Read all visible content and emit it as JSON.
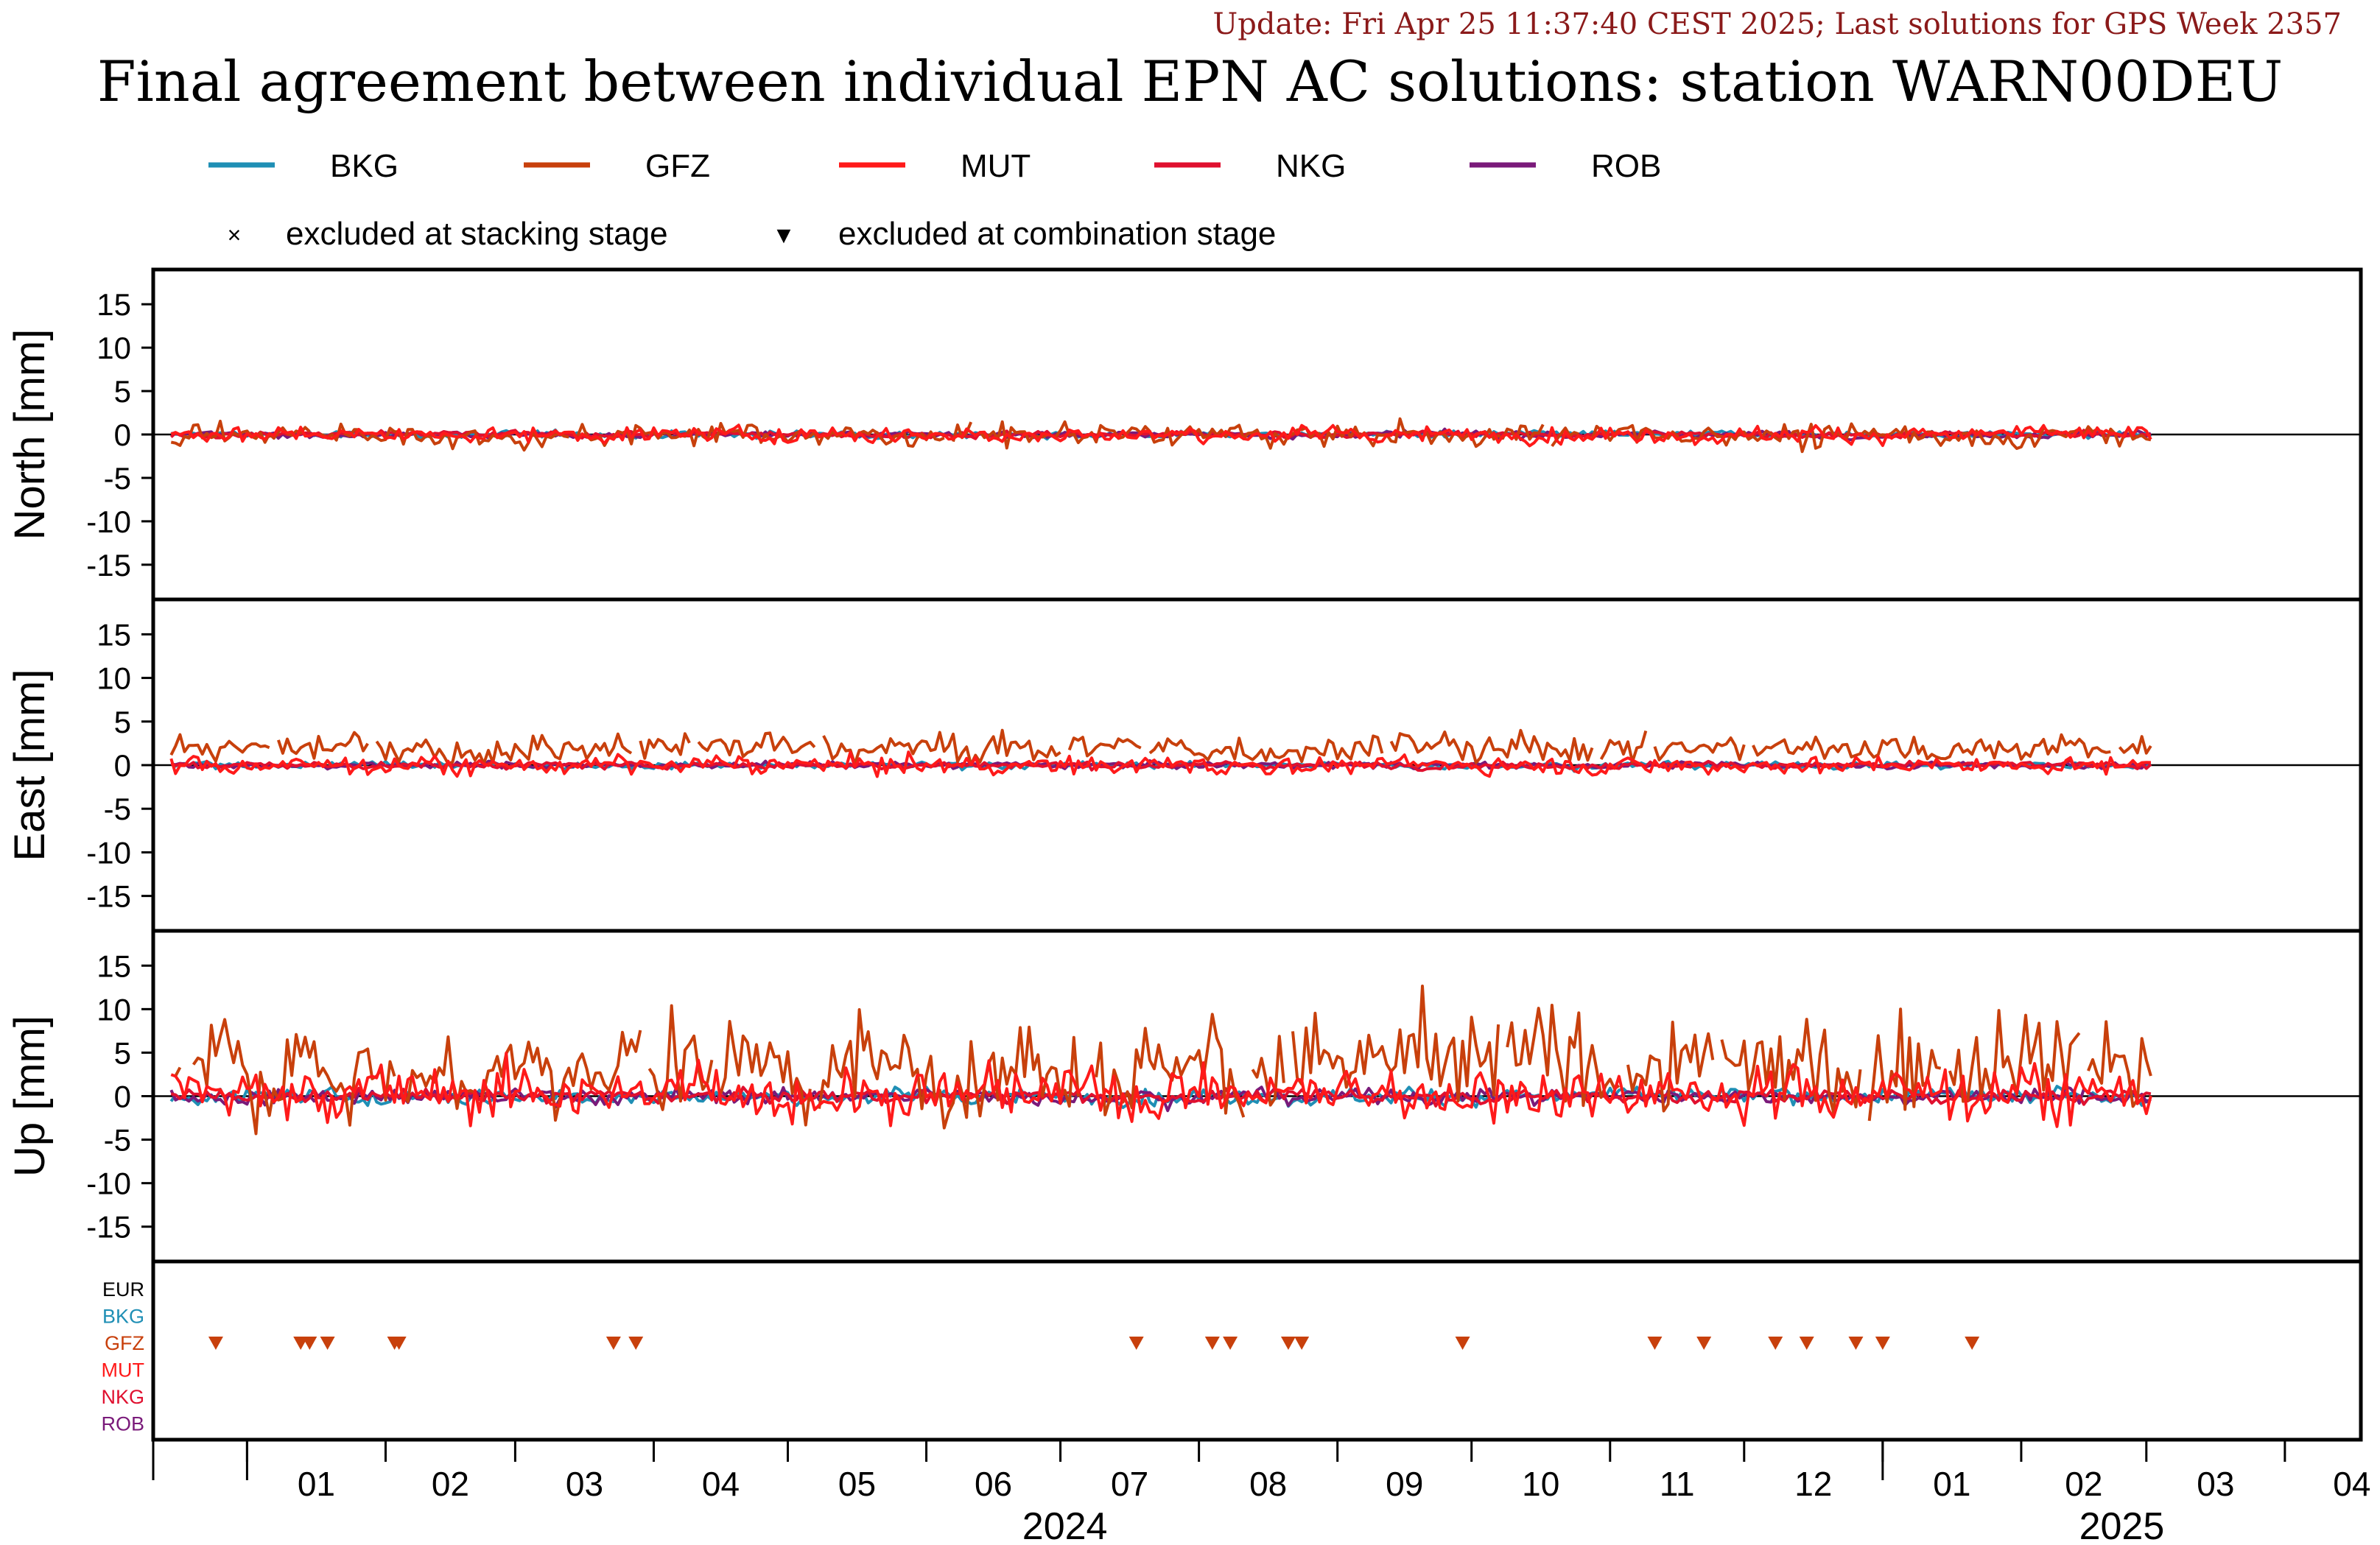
{
  "header": {
    "update_text": "Update: Fri Apr 25 11:37:40 CEST 2025; Last solutions for GPS Week 2357",
    "title": "Final agreement between individual EPN AC solutions: station WARN00DEU"
  },
  "legend": {
    "series": [
      {
        "name": "BKG",
        "color": "#1f8fb5"
      },
      {
        "name": "GFZ",
        "color": "#c8400c"
      },
      {
        "name": "MUT",
        "color": "#ff1a1a"
      },
      {
        "name": "NKG",
        "color": "#e0102f"
      },
      {
        "name": "ROB",
        "color": "#7a1a7a"
      }
    ],
    "markers": [
      {
        "symbol": "×",
        "label": "excluded at stacking stage"
      },
      {
        "symbol": "▼",
        "label": "excluded at combination stage"
      }
    ]
  },
  "chart_data": [
    {
      "type": "line",
      "panel": "North",
      "ylabel": "North [mm]",
      "ylim": [
        -19,
        19
      ],
      "yticks": [
        15,
        10,
        5,
        0,
        -5,
        -10,
        -15
      ],
      "xlim": [
        "2023-12-11",
        "2025-04-18"
      ],
      "series_amplitude_mm": {
        "BKG": 0.3,
        "GFZ": 1.0,
        "MUT": 0.7,
        "NKG": 0.3,
        "ROB": 0.3
      },
      "series_offset_mm": {
        "BKG": 0,
        "GFZ": 0,
        "MUT": 0,
        "NKG": 0,
        "ROB": 0
      }
    },
    {
      "type": "line",
      "panel": "East",
      "ylabel": "East [mm]",
      "ylim": [
        -19,
        19
      ],
      "yticks": [
        15,
        10,
        5,
        0,
        -5,
        -10,
        -15
      ],
      "xlim": [
        "2023-12-11",
        "2025-04-18"
      ],
      "series_amplitude_mm": {
        "BKG": 0.3,
        "GFZ": 1.3,
        "MUT": 0.8,
        "NKG": 0.3,
        "ROB": 0.3
      },
      "series_offset_mm": {
        "BKG": 0,
        "GFZ": 2.0,
        "MUT": 0,
        "NKG": 0,
        "ROB": 0
      }
    },
    {
      "type": "line",
      "panel": "Up",
      "ylabel": "Up [mm]",
      "ylim": [
        -19,
        19
      ],
      "yticks": [
        15,
        10,
        5,
        0,
        -5,
        -10,
        -15
      ],
      "xlim": [
        "2023-12-11",
        "2025-04-18"
      ],
      "series_amplitude_mm": {
        "BKG": 0.7,
        "GFZ": 4.5,
        "MUT": 2.5,
        "NKG": 0.6,
        "ROB": 0.7
      },
      "series_offset_mm": {
        "BKG": 0,
        "GFZ": 3.5,
        "MUT": 0.5,
        "NKG": 0,
        "ROB": 0
      }
    }
  ],
  "exclusions": {
    "rows": [
      {
        "label": "EUR",
        "color": "#000000"
      },
      {
        "label": "BKG",
        "color": "#1f8fb5"
      },
      {
        "label": "GFZ",
        "color": "#c8400c"
      },
      {
        "label": "MUT",
        "color": "#ff1a1a"
      },
      {
        "label": "NKG",
        "color": "#e0102f"
      },
      {
        "label": "ROB",
        "color": "#7a1a7a"
      }
    ],
    "combination_stage": {
      "GFZ": [
        "2023-12-25",
        "2024-01-13",
        "2024-01-15",
        "2024-01-19",
        "2024-02-03",
        "2024-02-04",
        "2024-03-23",
        "2024-03-28",
        "2024-07-18",
        "2024-08-04",
        "2024-08-08",
        "2024-08-21",
        "2024-08-24",
        "2024-09-29",
        "2024-11-11",
        "2024-11-22",
        "2024-12-08",
        "2024-12-15",
        "2024-12-26",
        "2025-01-01",
        "2025-01-21"
      ]
    }
  },
  "x_axis": {
    "month_ticks": [
      {
        "date": "2024-01-01",
        "label": "01"
      },
      {
        "date": "2024-02-01",
        "label": "02"
      },
      {
        "date": "2024-03-01",
        "label": "03"
      },
      {
        "date": "2024-04-01",
        "label": "04"
      },
      {
        "date": "2024-05-01",
        "label": "05"
      },
      {
        "date": "2024-06-01",
        "label": "06"
      },
      {
        "date": "2024-07-01",
        "label": "07"
      },
      {
        "date": "2024-08-01",
        "label": "08"
      },
      {
        "date": "2024-09-01",
        "label": "09"
      },
      {
        "date": "2024-10-01",
        "label": "10"
      },
      {
        "date": "2024-11-01",
        "label": "11"
      },
      {
        "date": "2024-12-01",
        "label": "12"
      },
      {
        "date": "2025-01-01",
        "label": "01"
      },
      {
        "date": "2025-02-01",
        "label": "02"
      },
      {
        "date": "2025-03-01",
        "label": "03"
      },
      {
        "date": "2025-04-01",
        "label": "04"
      }
    ],
    "years": [
      {
        "label": "2024",
        "start": "2024-01-01",
        "end": "2025-01-01"
      },
      {
        "label": "2025",
        "start": "2025-01-01",
        "end": "2025-04-18"
      }
    ]
  }
}
